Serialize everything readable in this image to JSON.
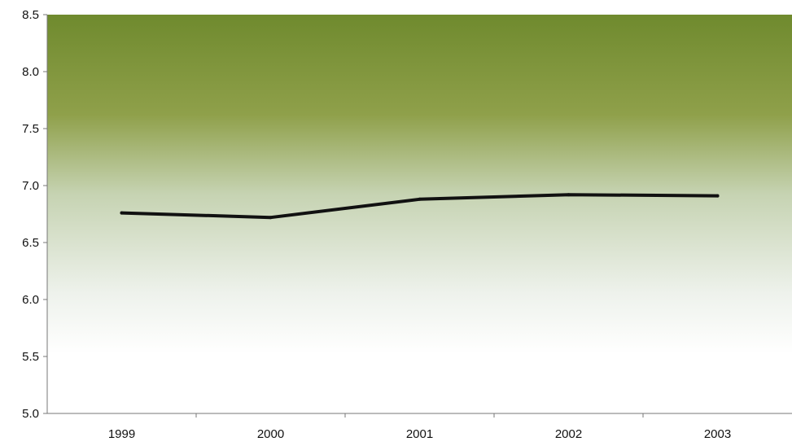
{
  "chart_data": {
    "type": "line",
    "categories": [
      "1999",
      "2000",
      "2001",
      "2002",
      "2003"
    ],
    "series": [
      {
        "values": [
          6.76,
          6.72,
          6.88,
          6.92,
          6.91
        ],
        "color": "#111111"
      }
    ],
    "ylim": [
      5.0,
      8.5
    ],
    "yticks": [
      "5.0",
      "5.5",
      "6.0",
      "6.5",
      "7.0",
      "7.5",
      "8.0",
      "8.5"
    ],
    "grid": false,
    "legend": "none",
    "background_gradient": [
      "#6f8a2e",
      "#8fa04a",
      "#c6d3b2",
      "#eef2ec",
      "#ffffff"
    ]
  }
}
